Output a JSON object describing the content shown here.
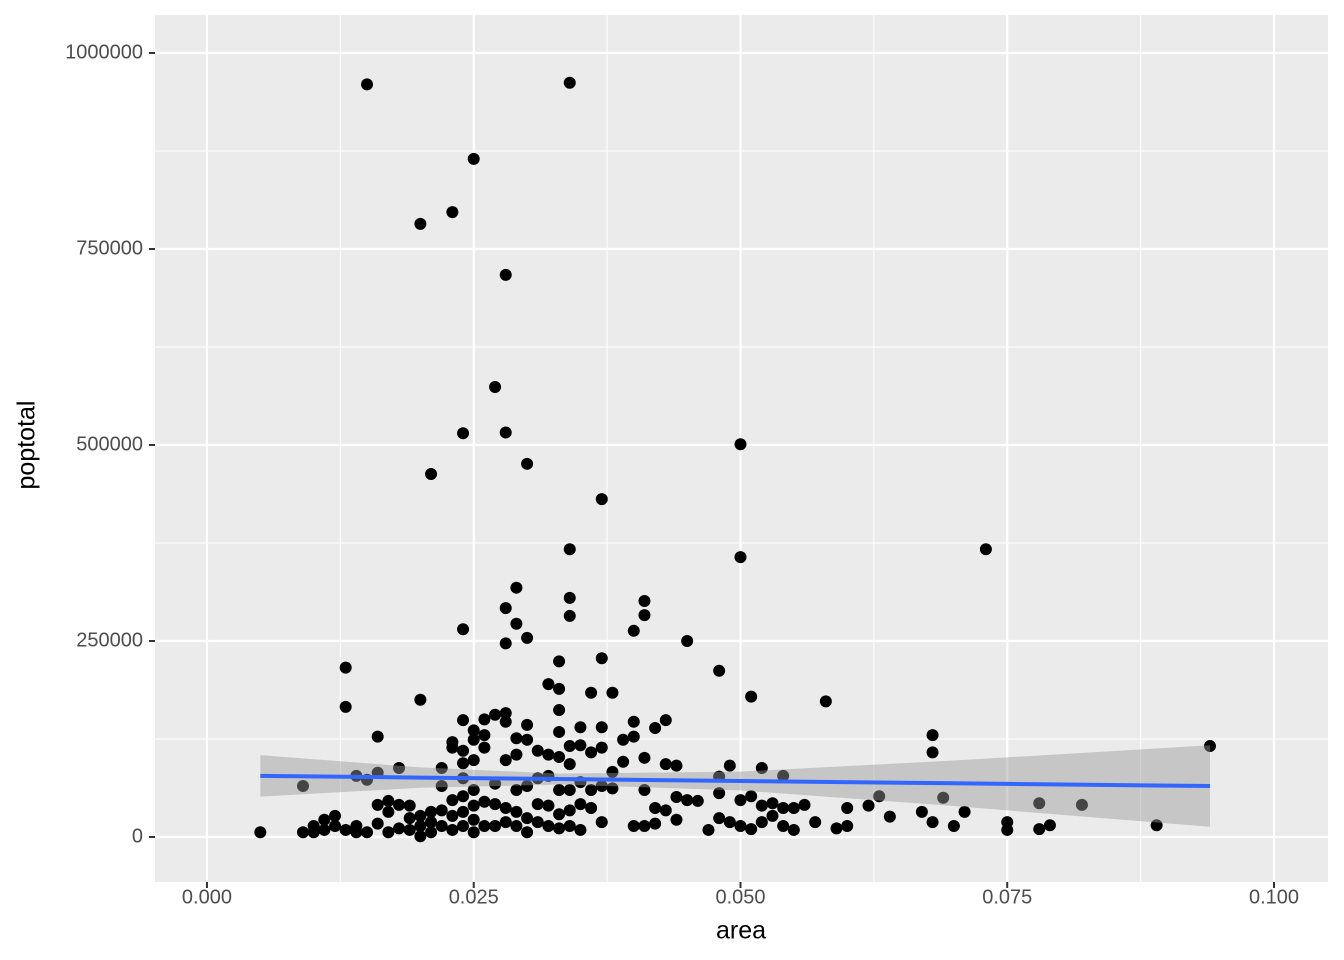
{
  "chart_data": {
    "type": "scatter",
    "x_label": "area",
    "y_label": "poptotal",
    "color": "#000000",
    "grid": true,
    "xlim": [
      -0.00487,
      0.10506
    ],
    "ylim": [
      -57398,
      1048469
    ],
    "xticks": [
      {
        "value": 0,
        "label": "0.000"
      },
      {
        "value": 0.025,
        "label": "0.025"
      },
      {
        "value": 0.05,
        "label": "0.050"
      },
      {
        "value": 0.075,
        "label": "0.075"
      },
      {
        "value": 0.1,
        "label": "0.100"
      }
    ],
    "yticks": [
      0,
      250000,
      500000,
      750000,
      1000000
    ],
    "x": [
      0.005,
      0.009,
      0.009,
      0.01,
      0.01,
      0.011,
      0.011,
      0.012,
      0.012,
      0.013,
      0.013,
      0.013,
      0.014,
      0.014,
      0.014,
      0.015,
      0.015,
      0.015,
      0.016,
      0.016,
      0.016,
      0.016,
      0.017,
      0.017,
      0.017,
      0.018,
      0.018,
      0.018,
      0.019,
      0.019,
      0.019,
      0.02,
      0.02,
      0.02,
      0.02,
      0.02,
      0.021,
      0.021,
      0.021,
      0.021,
      0.022,
      0.022,
      0.022,
      0.022,
      0.023,
      0.023,
      0.023,
      0.023,
      0.023,
      0.023,
      0.024,
      0.024,
      0.024,
      0.024,
      0.024,
      0.024,
      0.024,
      0.024,
      0.024,
      0.025,
      0.025,
      0.025,
      0.025,
      0.025,
      0.025,
      0.025,
      0.025,
      0.026,
      0.026,
      0.026,
      0.026,
      0.026,
      0.027,
      0.027,
      0.027,
      0.027,
      0.027,
      0.028,
      0.028,
      0.028,
      0.028,
      0.028,
      0.028,
      0.028,
      0.028,
      0.028,
      0.029,
      0.029,
      0.029,
      0.029,
      0.029,
      0.029,
      0.029,
      0.03,
      0.03,
      0.03,
      0.03,
      0.03,
      0.03,
      0.03,
      0.031,
      0.031,
      0.031,
      0.031,
      0.032,
      0.032,
      0.032,
      0.032,
      0.032,
      0.033,
      0.033,
      0.033,
      0.033,
      0.033,
      0.033,
      0.033,
      0.033,
      0.034,
      0.034,
      0.034,
      0.034,
      0.034,
      0.034,
      0.034,
      0.034,
      0.034,
      0.035,
      0.035,
      0.035,
      0.035,
      0.035,
      0.036,
      0.036,
      0.036,
      0.036,
      0.037,
      0.037,
      0.037,
      0.037,
      0.037,
      0.037,
      0.038,
      0.038,
      0.038,
      0.039,
      0.039,
      0.04,
      0.04,
      0.04,
      0.04,
      0.041,
      0.041,
      0.041,
      0.041,
      0.041,
      0.042,
      0.042,
      0.042,
      0.043,
      0.043,
      0.043,
      0.044,
      0.044,
      0.044,
      0.045,
      0.045,
      0.046,
      0.047,
      0.048,
      0.048,
      0.048,
      0.048,
      0.049,
      0.049,
      0.05,
      0.05,
      0.05,
      0.05,
      0.051,
      0.051,
      0.051,
      0.052,
      0.052,
      0.052,
      0.053,
      0.053,
      0.054,
      0.054,
      0.054,
      0.055,
      0.055,
      0.056,
      0.057,
      0.058,
      0.059,
      0.06,
      0.06,
      0.062,
      0.063,
      0.064,
      0.067,
      0.068,
      0.068,
      0.068,
      0.069,
      0.07,
      0.071,
      0.073,
      0.075,
      0.075,
      0.078,
      0.078,
      0.079,
      0.082,
      0.089,
      0.094
    ],
    "values": [
      6000,
      65000,
      6000,
      14000,
      6000,
      22000,
      9000,
      27000,
      14000,
      216000,
      166000,
      9000,
      78000,
      14000,
      6000,
      960000,
      73000,
      6000,
      128000,
      82000,
      41000,
      17000,
      46000,
      32000,
      6000,
      88000,
      41000,
      11000,
      40000,
      24000,
      9000,
      782000,
      175000,
      27000,
      14000,
      1000,
      463000,
      32000,
      19000,
      6000,
      88000,
      65000,
      34000,
      14000,
      797000,
      121000,
      114000,
      47000,
      27000,
      9000,
      515000,
      265000,
      149000,
      110000,
      94000,
      75000,
      52000,
      32000,
      14000,
      865000,
      136000,
      124000,
      98000,
      60000,
      40000,
      22000,
      6000,
      150000,
      130000,
      114000,
      45000,
      14000,
      574000,
      156000,
      68000,
      42000,
      14000,
      717000,
      516000,
      292000,
      247000,
      158000,
      147000,
      98000,
      37000,
      19000,
      318000,
      272000,
      126000,
      105000,
      60000,
      32000,
      14000,
      476000,
      254000,
      143000,
      124000,
      65000,
      24000,
      6000,
      110000,
      75000,
      42000,
      19000,
      195000,
      105000,
      78000,
      40000,
      14000,
      224000,
      189000,
      162000,
      134000,
      102000,
      60000,
      29000,
      11000,
      962000,
      367000,
      305000,
      282000,
      116000,
      93000,
      60000,
      34000,
      14000,
      140000,
      117000,
      70000,
      42000,
      9000,
      184000,
      108000,
      60000,
      37000,
      431000,
      228000,
      140000,
      114000,
      65000,
      19000,
      184000,
      83000,
      62000,
      124000,
      96000,
      263000,
      147000,
      128000,
      14000,
      301000,
      283000,
      101000,
      60000,
      14000,
      139000,
      37000,
      17000,
      149000,
      93000,
      34000,
      91000,
      51000,
      22000,
      250000,
      47000,
      46000,
      9000,
      212000,
      77000,
      56000,
      24000,
      91000,
      19000,
      501000,
      357000,
      47000,
      14000,
      179000,
      52000,
      10000,
      88000,
      40000,
      19000,
      43000,
      27000,
      78000,
      37000,
      14000,
      37000,
      9000,
      41000,
      19000,
      173000,
      11000,
      37000,
      14000,
      40000,
      52000,
      26000,
      32000,
      130000,
      108000,
      19000,
      50000,
      14000,
      32000,
      367000,
      19000,
      9000,
      43000,
      10000,
      15000,
      41000,
      15000,
      116000
    ],
    "fit": {
      "color": "#3366ff",
      "band_color": "#999999",
      "x": [
        0.005,
        0.02,
        0.033,
        0.05,
        0.07,
        0.094
      ],
      "values": [
        78000,
        75800,
        73900,
        71400,
        68500,
        65000
      ],
      "lower": [
        51500,
        62800,
        66900,
        59400,
        39500,
        13000
      ],
      "upper": [
        104500,
        88800,
        80900,
        83400,
        97500,
        117000
      ]
    }
  }
}
